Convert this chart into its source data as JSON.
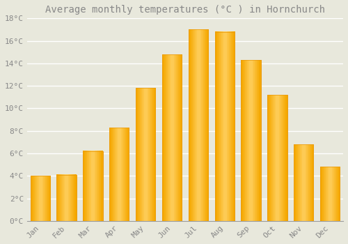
{
  "title": "Average monthly temperatures (°C ) in Hornchurch",
  "months": [
    "Jan",
    "Feb",
    "Mar",
    "Apr",
    "May",
    "Jun",
    "Jul",
    "Aug",
    "Sep",
    "Oct",
    "Nov",
    "Dec"
  ],
  "values": [
    4.0,
    4.1,
    6.2,
    8.3,
    11.8,
    14.8,
    17.0,
    16.8,
    14.3,
    11.2,
    6.8,
    4.8
  ],
  "bar_color_light": "#FFD060",
  "bar_color_dark": "#F5A800",
  "bar_edge_color": "#E8980A",
  "background_color": "#E8E8DC",
  "grid_color": "#FFFFFF",
  "text_color": "#888888",
  "ylim": [
    0,
    18
  ],
  "yticks": [
    0,
    2,
    4,
    6,
    8,
    10,
    12,
    14,
    16,
    18
  ],
  "ytick_labels": [
    "0°C",
    "2°C",
    "4°C",
    "6°C",
    "8°C",
    "10°C",
    "12°C",
    "14°C",
    "16°C",
    "18°C"
  ],
  "title_fontsize": 10,
  "tick_fontsize": 8,
  "figsize": [
    5.0,
    3.5
  ],
  "dpi": 100,
  "bar_width": 0.75
}
